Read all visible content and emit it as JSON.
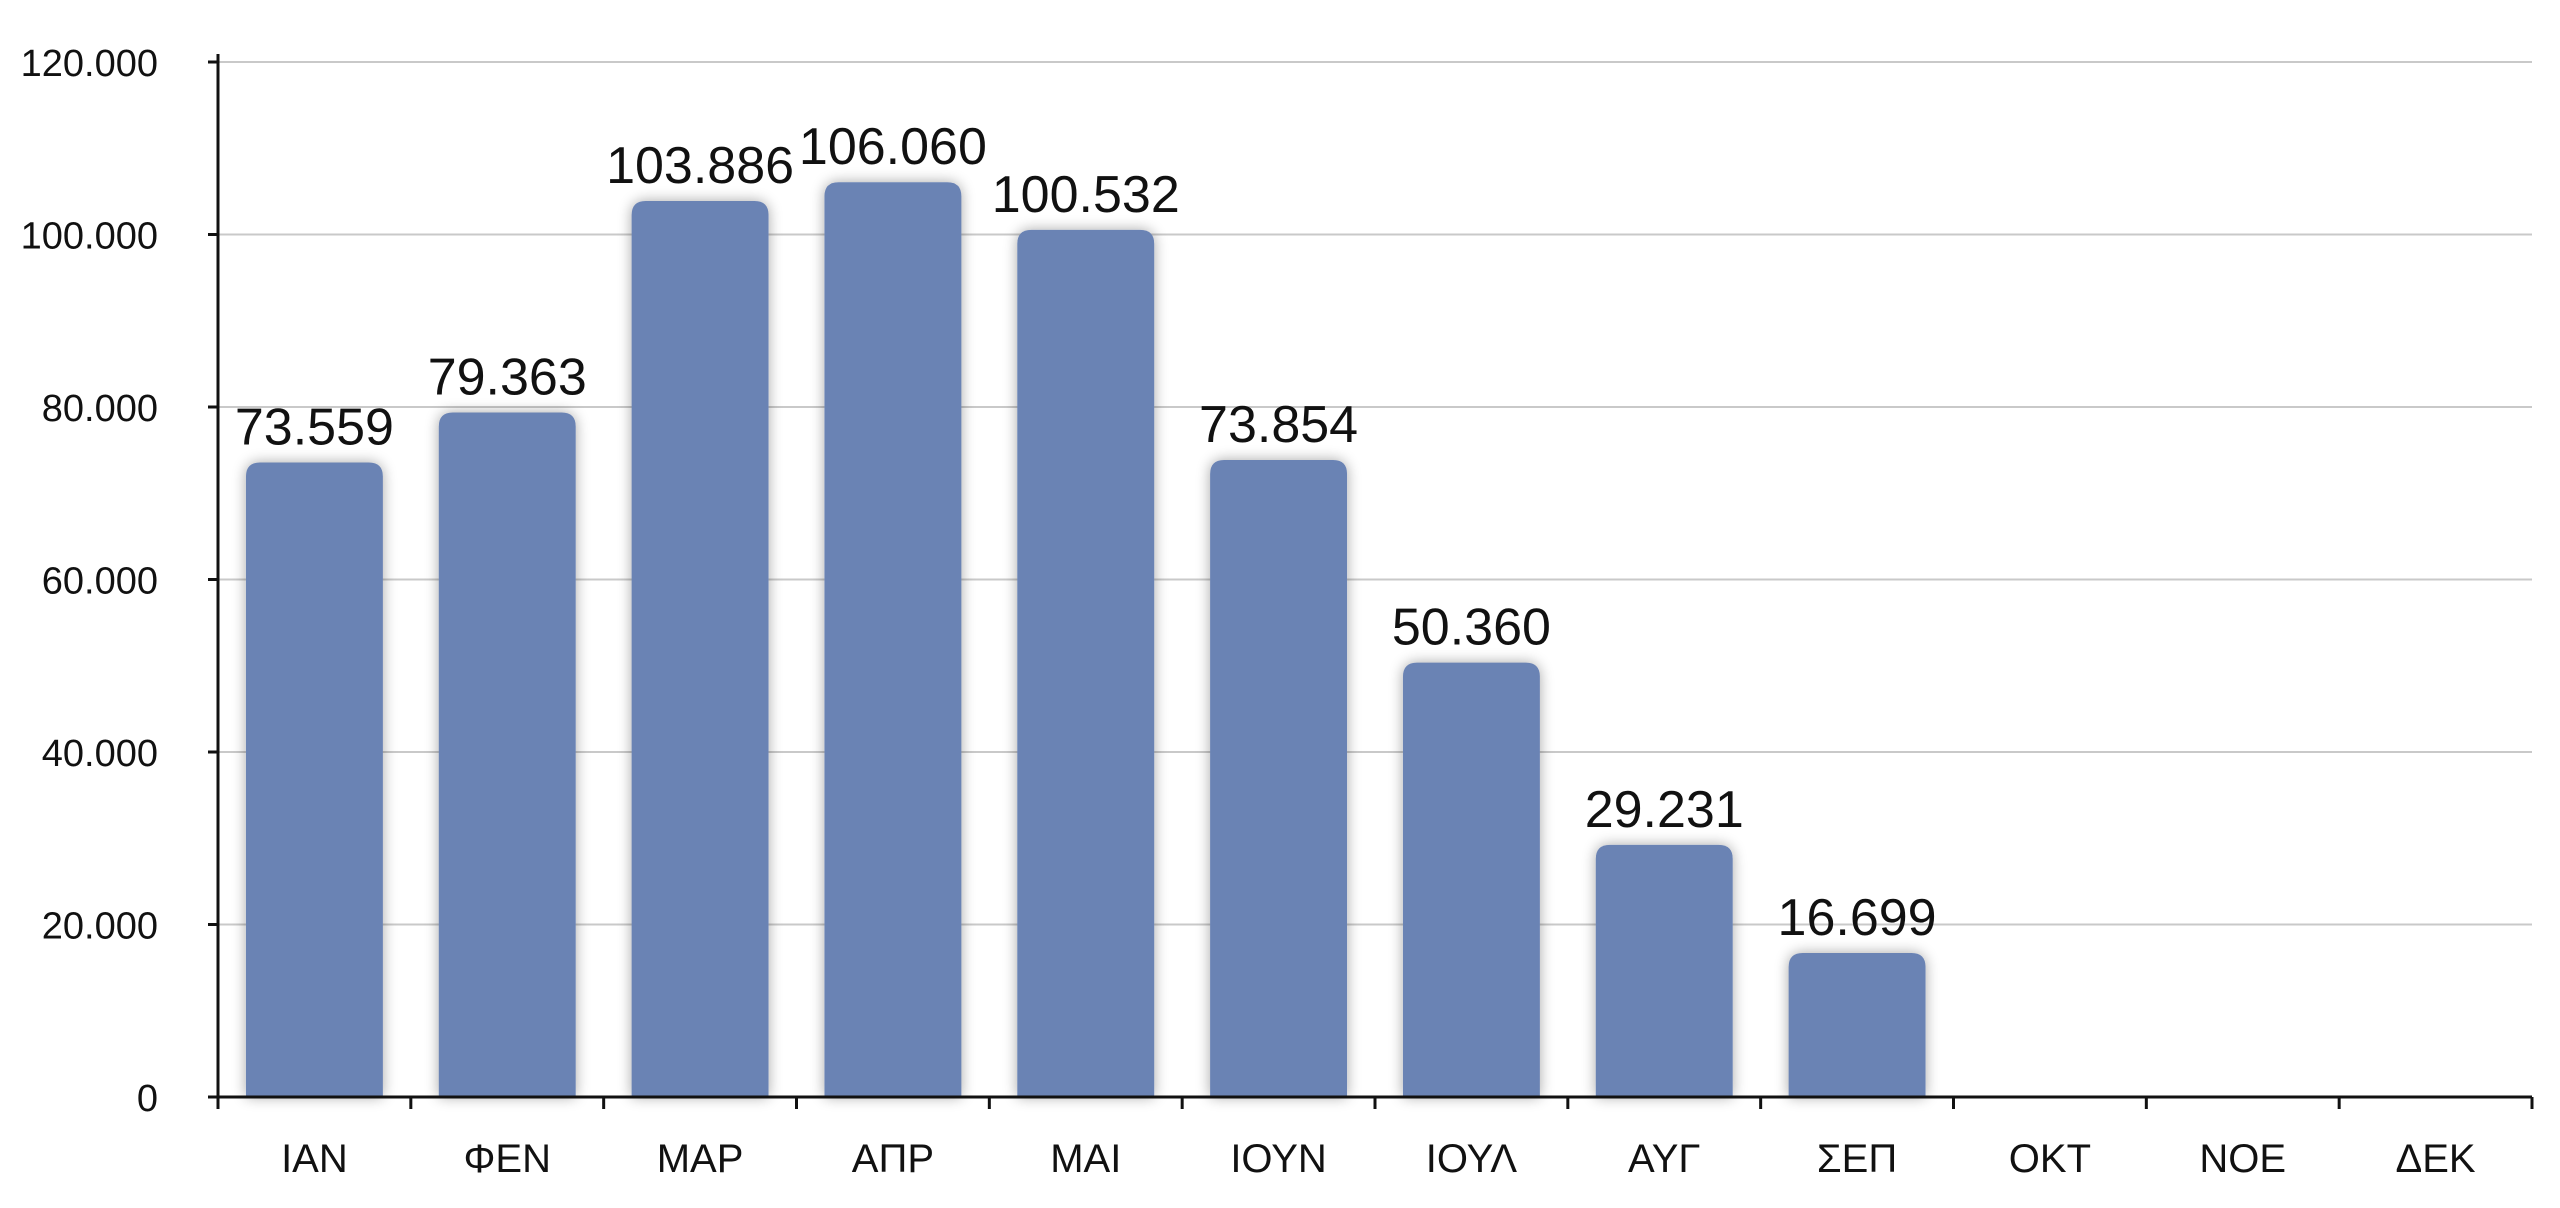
{
  "chart_data": {
    "type": "bar",
    "categories": [
      "ΙΑΝ",
      "ΦΕΝ",
      "ΜΑΡ",
      "ΑΠΡ",
      "ΜΑΙ",
      "ΙΟΥΝ",
      "ΙΟΥΛ",
      "ΑΥΓ",
      "ΣΕΠ",
      "ΟΚΤ",
      "ΝΟΕ",
      "ΔΕΚ"
    ],
    "values": [
      73559,
      79363,
      103886,
      106060,
      100532,
      73854,
      50360,
      29231,
      16699,
      null,
      null,
      null
    ],
    "data_labels": [
      "73.559",
      "79.363",
      "103.886",
      "106.060",
      "100.532",
      "73.854",
      "50.360",
      "29.231",
      "16.699",
      "",
      "",
      ""
    ],
    "title": "",
    "xlabel": "",
    "ylabel": "",
    "ylim": [
      0,
      120000
    ],
    "y_ticks": [
      0,
      20000,
      40000,
      60000,
      80000,
      100000,
      120000
    ],
    "y_tick_labels": [
      "0",
      "20.000",
      "40.000",
      "60.000",
      "80.000",
      "100.000",
      "120.000"
    ],
    "grid": true,
    "legend": "none",
    "bar_color": "#6b83b4",
    "grid_color": "#c9c9c9",
    "axis_color": "#111111"
  }
}
